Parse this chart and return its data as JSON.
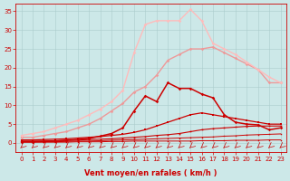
{
  "bg_color": "#cce8e8",
  "grid_color": "#aacccc",
  "x_ticks": [
    0,
    1,
    2,
    3,
    4,
    5,
    6,
    7,
    8,
    9,
    10,
    11,
    12,
    13,
    14,
    15,
    16,
    17,
    18,
    19,
    20,
    21,
    22,
    23
  ],
  "xlabel": "Vent moyen/en rafales ( km/h )",
  "line_color": "#cc0000",
  "tick_color": "#cc0000",
  "ylabel_ticks": [
    0,
    5,
    10,
    15,
    20,
    25,
    30,
    35
  ],
  "ylim": [
    -2.5,
    37
  ],
  "xlim": [
    -0.5,
    23.5
  ],
  "lines": [
    {
      "x": [
        0,
        1,
        2,
        3,
        4,
        5,
        6,
        7,
        8,
        9,
        10,
        11,
        12,
        13,
        14,
        15,
        16,
        17,
        18,
        19,
        20,
        21,
        22,
        23
      ],
      "y": [
        0.2,
        0.2,
        0.2,
        0.2,
        0.2,
        0.3,
        0.3,
        0.3,
        0.4,
        0.4,
        0.5,
        0.5,
        0.5,
        0.5,
        0.5,
        0.5,
        0.6,
        0.6,
        0.6,
        0.7,
        0.7,
        0.7,
        0.8,
        0.8
      ],
      "color": "#cc0000",
      "lw": 0.7,
      "marker": "s",
      "ms": 1.0
    },
    {
      "x": [
        0,
        1,
        2,
        3,
        4,
        5,
        6,
        7,
        8,
        9,
        10,
        11,
        12,
        13,
        14,
        15,
        16,
        17,
        18,
        19,
        20,
        21,
        22,
        23
      ],
      "y": [
        0.3,
        0.3,
        0.3,
        0.3,
        0.4,
        0.5,
        0.5,
        0.6,
        0.7,
        0.8,
        0.9,
        1.0,
        1.1,
        1.2,
        1.3,
        1.4,
        1.5,
        1.6,
        1.8,
        1.9,
        2.1,
        2.2,
        2.3,
        2.4
      ],
      "color": "#cc0000",
      "lw": 0.7,
      "marker": "s",
      "ms": 1.0
    },
    {
      "x": [
        0,
        1,
        2,
        3,
        4,
        5,
        6,
        7,
        8,
        9,
        10,
        11,
        12,
        13,
        14,
        15,
        16,
        17,
        18,
        19,
        20,
        21,
        22,
        23
      ],
      "y": [
        0.5,
        0.5,
        0.5,
        0.6,
        0.7,
        0.8,
        0.9,
        1.0,
        1.1,
        1.3,
        1.5,
        1.7,
        2.0,
        2.2,
        2.5,
        3.0,
        3.5,
        3.8,
        4.0,
        4.2,
        4.4,
        4.5,
        4.5,
        4.5
      ],
      "color": "#cc0000",
      "lw": 0.8,
      "marker": "s",
      "ms": 1.2
    },
    {
      "x": [
        0,
        1,
        2,
        3,
        4,
        5,
        6,
        7,
        8,
        9,
        10,
        11,
        12,
        13,
        14,
        15,
        16,
        17,
        18,
        19,
        20,
        21,
        22,
        23
      ],
      "y": [
        0.8,
        0.8,
        0.9,
        1.0,
        1.1,
        1.3,
        1.5,
        1.7,
        2.0,
        2.3,
        2.8,
        3.5,
        4.5,
        5.5,
        6.5,
        7.5,
        8.0,
        7.5,
        7.0,
        6.5,
        6.0,
        5.5,
        5.0,
        5.0
      ],
      "color": "#cc0000",
      "lw": 0.9,
      "marker": "s",
      "ms": 1.5
    },
    {
      "x": [
        0,
        1,
        2,
        3,
        4,
        5,
        6,
        7,
        8,
        9,
        10,
        11,
        12,
        13,
        14,
        15,
        16,
        17,
        18,
        19,
        20,
        21,
        22,
        23
      ],
      "y": [
        0.3,
        0.3,
        0.4,
        0.5,
        0.7,
        0.9,
        1.2,
        1.8,
        2.5,
        4.0,
        8.5,
        12.5,
        11.0,
        16.0,
        14.5,
        14.5,
        13.0,
        12.0,
        7.5,
        5.5,
        5.0,
        4.8,
        3.5,
        4.0
      ],
      "color": "#cc0000",
      "lw": 1.1,
      "marker": "D",
      "ms": 1.8
    },
    {
      "x": [
        0,
        1,
        2,
        3,
        4,
        5,
        6,
        7,
        8,
        9,
        10,
        11,
        12,
        13,
        14,
        15,
        16,
        17,
        18,
        19,
        20,
        21,
        22,
        23
      ],
      "y": [
        1.5,
        1.5,
        2.0,
        2.5,
        3.0,
        4.0,
        5.0,
        6.5,
        8.5,
        10.5,
        13.5,
        15.0,
        18.0,
        22.0,
        23.5,
        25.0,
        25.0,
        25.5,
        24.0,
        22.5,
        21.0,
        19.5,
        16.0,
        16.0
      ],
      "color": "#ee9999",
      "lw": 1.0,
      "marker": "D",
      "ms": 1.8
    },
    {
      "x": [
        0,
        1,
        2,
        3,
        4,
        5,
        6,
        7,
        8,
        9,
        10,
        11,
        12,
        13,
        14,
        15,
        16,
        17,
        18,
        19,
        20,
        21,
        22,
        23
      ],
      "y": [
        2.0,
        2.5,
        3.0,
        4.0,
        5.0,
        6.0,
        7.5,
        9.0,
        11.0,
        14.0,
        24.0,
        31.5,
        32.5,
        32.5,
        32.5,
        35.5,
        32.5,
        26.5,
        25.0,
        23.5,
        21.5,
        19.5,
        17.5,
        16.0
      ],
      "color": "#ffbbbb",
      "lw": 1.0,
      "marker": "D",
      "ms": 1.8
    }
  ],
  "tick_fontsize": 5.0,
  "label_fontsize": 6.0
}
